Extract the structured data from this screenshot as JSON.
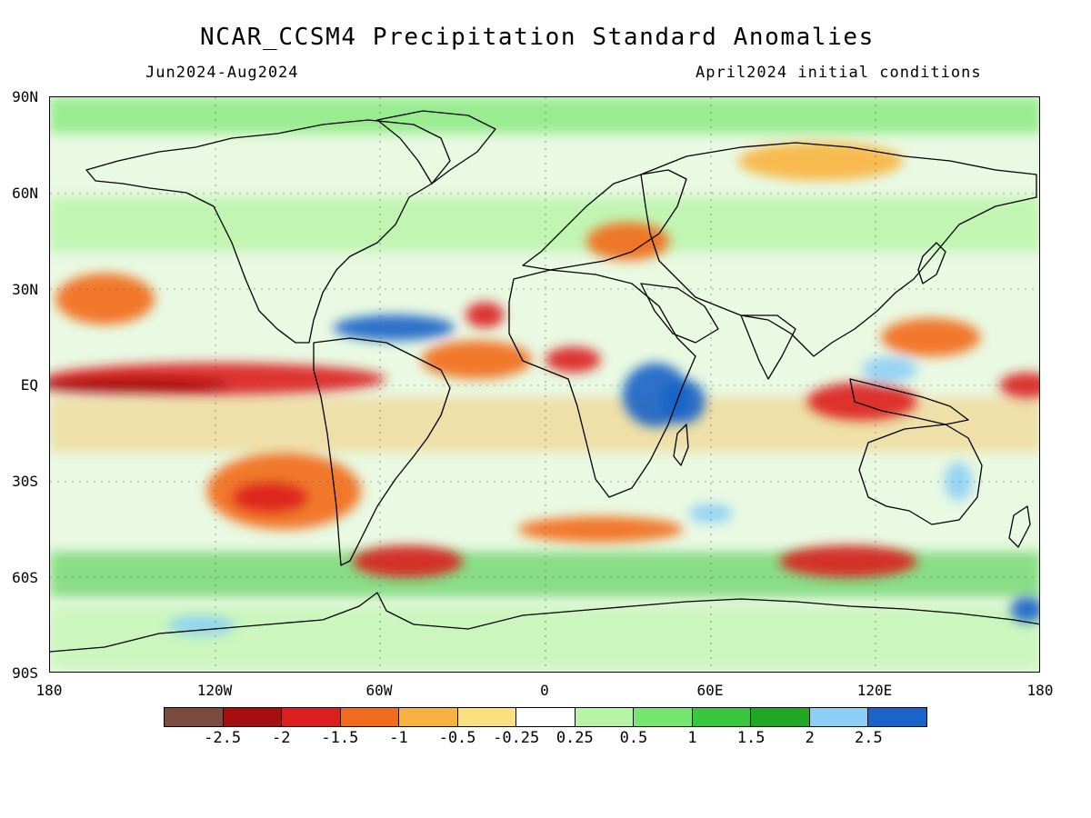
{
  "title": "NCAR_CCSM4 Precipitation Standard Anomalies",
  "subtitle_left": "Jun2024-Aug2024",
  "subtitle_right": "April2024 initial conditions",
  "y_axis_labels": [
    "90N",
    "60N",
    "30N",
    "EQ",
    "30S",
    "60S",
    "90S"
  ],
  "x_axis_labels": [
    "180",
    "120W",
    "60W",
    "0",
    "60E",
    "120E",
    "180"
  ],
  "colorbar": {
    "colors": [
      "#7b4b3f",
      "#a50f0f",
      "#dc1e1e",
      "#f26a1b",
      "#f8b23f",
      "#fbe07f",
      "#ffffff",
      "#b8f4a6",
      "#76e76e",
      "#39c73d",
      "#20a822",
      "#8ccff5",
      "#1a63c8"
    ],
    "labels": [
      "-2.5",
      "-2",
      "-1.5",
      "-1",
      "-0.5",
      "-0.25",
      "0.25",
      "0.5",
      "1",
      "1.5",
      "2",
      "2.5"
    ]
  },
  "map": {
    "lat_range": [
      -90,
      90
    ],
    "lon_range": [
      -180,
      180
    ],
    "anomaly_regions": [
      {
        "name": "equatorial-pacific-dry",
        "lon": -120,
        "lat": 2,
        "rlon": 62,
        "rlat": 5,
        "color": "#dc1e1e"
      },
      {
        "name": "equatorial-pacific-dry-core",
        "lon": -150,
        "lat": 0,
        "rlon": 35,
        "rlat": 2.5,
        "color": "#a50f0f"
      },
      {
        "name": "western-pacific-dry",
        "lon": 175,
        "lat": 0,
        "rlon": 10,
        "rlat": 4,
        "color": "#dc1e1e"
      },
      {
        "name": "north-pacific-dry",
        "lon": -160,
        "lat": 27,
        "rlon": 18,
        "rlat": 8,
        "color": "#f26a1b"
      },
      {
        "name": "southeast-pacific-dry",
        "lon": -95,
        "lat": -33,
        "rlon": 28,
        "rlat": 12,
        "color": "#f26a1b"
      },
      {
        "name": "southeast-pacific-dry-core",
        "lon": -100,
        "lat": -35,
        "rlon": 14,
        "rlat": 5,
        "color": "#dc1e1e"
      },
      {
        "name": "south-atlantic-cape-horn-dry",
        "lon": -50,
        "lat": -55,
        "rlon": 20,
        "rlat": 5,
        "color": "#dc1e1e"
      },
      {
        "name": "tropical-atlantic-dry",
        "lon": -25,
        "lat": 8,
        "rlon": 20,
        "rlat": 6,
        "color": "#f26a1b"
      },
      {
        "name": "gulf-of-guinea-dry",
        "lon": 10,
        "lat": 8,
        "rlon": 10,
        "rlat": 4,
        "color": "#dc1e1e"
      },
      {
        "name": "central-atlantic-dry-spot",
        "lon": -22,
        "lat": 22,
        "rlon": 7,
        "rlat": 4,
        "color": "#dc1e1e"
      },
      {
        "name": "caribbean-wet",
        "lon": -55,
        "lat": 18,
        "rlon": 22,
        "rlat": 4,
        "color": "#1a63c8"
      },
      {
        "name": "east-africa-wet",
        "lon": 40,
        "lat": -3,
        "rlon": 12,
        "rlat": 10,
        "color": "#1a63c8"
      },
      {
        "name": "east-africa-wet-core",
        "lon": 50,
        "lat": -5,
        "rlon": 8,
        "rlat": 7,
        "color": "#1a63c8"
      },
      {
        "name": "maritime-continent-dry",
        "lon": 115,
        "lat": -5,
        "rlon": 20,
        "rlat": 6,
        "color": "#dc1e1e"
      },
      {
        "name": "philippine-sea-dry",
        "lon": 140,
        "lat": 15,
        "rlon": 18,
        "rlat": 6,
        "color": "#f26a1b"
      },
      {
        "name": "southern-ocean-dry-indian",
        "lon": 110,
        "lat": -55,
        "rlon": 25,
        "rlat": 5,
        "color": "#dc1e1e"
      },
      {
        "name": "southern-ocean-dry-atlantic",
        "lon": 20,
        "lat": -45,
        "rlon": 30,
        "rlat": 4,
        "color": "#f26a1b"
      },
      {
        "name": "europe-dry",
        "lon": 30,
        "lat": 45,
        "rlon": 15,
        "rlat": 6,
        "color": "#f26a1b"
      },
      {
        "name": "siberia-dry",
        "lon": 100,
        "lat": 70,
        "rlon": 30,
        "rlat": 6,
        "color": "#f8b23f"
      },
      {
        "name": "southern-indian-wet-spot",
        "lon": 60,
        "lat": -40,
        "rlon": 8,
        "rlat": 3,
        "color": "#8ccff5"
      },
      {
        "name": "indonesia-wet",
        "lon": 125,
        "lat": 5,
        "rlon": 10,
        "rlat": 4,
        "color": "#8ccff5"
      },
      {
        "name": "antarctic-ross-sea-wet",
        "lon": 175,
        "lat": -70,
        "rlon": 6,
        "rlat": 4,
        "color": "#1a63c8"
      },
      {
        "name": "antarctic-pacific-wet",
        "lon": -125,
        "lat": -75,
        "rlon": 12,
        "rlat": 3,
        "color": "#8ccff5"
      },
      {
        "name": "australia-east-wet",
        "lon": 150,
        "lat": -30,
        "rlon": 5,
        "rlat": 6,
        "color": "#8ccff5"
      }
    ]
  }
}
